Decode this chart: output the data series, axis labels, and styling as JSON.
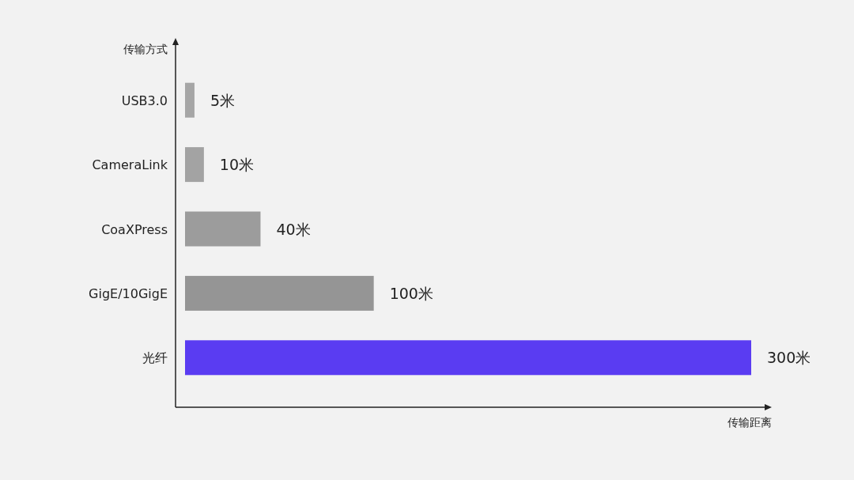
{
  "chart_data": {
    "type": "bar",
    "orientation": "horizontal",
    "ylabel": "传输方式",
    "xlabel": "传输距离",
    "categories": [
      "USB3.0",
      "CameraLink",
      "CoaXPress",
      "GigE/10GigE",
      "光纤"
    ],
    "values": [
      5,
      10,
      40,
      100,
      300
    ],
    "colors": [
      "#a6a6a6",
      "#a3a3a3",
      "#9c9c9c",
      "#959595",
      "#5a3cf2"
    ],
    "value_labels": [
      "5米",
      "10米",
      "40米",
      "100米",
      "300米"
    ]
  }
}
